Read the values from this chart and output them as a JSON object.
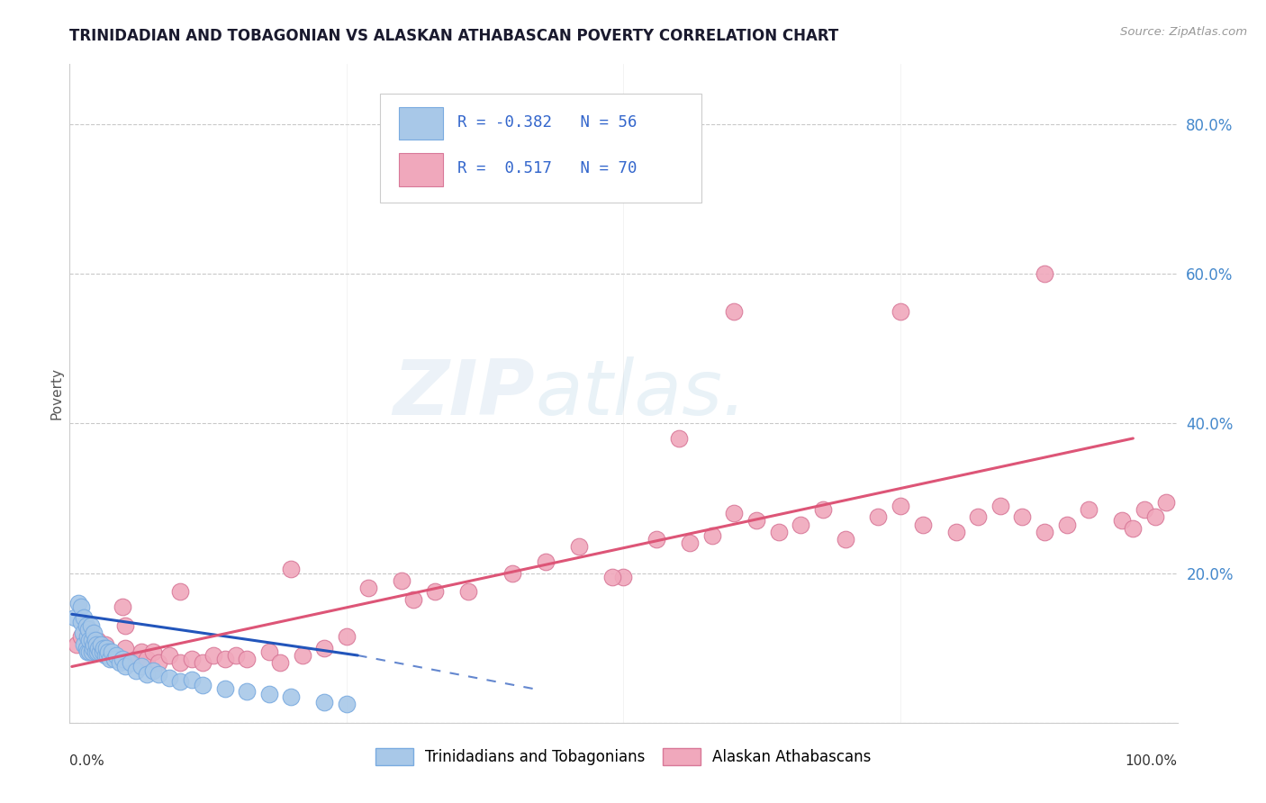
{
  "title": "TRINIDADIAN AND TOBAGONIAN VS ALASKAN ATHABASCAN POVERTY CORRELATION CHART",
  "source": "Source: ZipAtlas.com",
  "ylabel": "Poverty",
  "xlim": [
    0,
    1
  ],
  "ylim": [
    0,
    0.88
  ],
  "yticks": [
    0.0,
    0.2,
    0.4,
    0.6,
    0.8
  ],
  "ytick_labels": [
    "",
    "20.0%",
    "40.0%",
    "60.0%",
    "80.0%"
  ],
  "bg_color": "#ffffff",
  "grid_color": "#bbbbbb",
  "color_blue": "#a8c8e8",
  "color_blue_edge": "#7aabe0",
  "color_pink": "#f0a8bc",
  "color_pink_edge": "#d87898",
  "trendline_blue_color": "#2255bb",
  "trendline_pink_color": "#dd5577",
  "watermark_color": "#b8d8f0",
  "scatter_blue_x": [
    0.005,
    0.008,
    0.01,
    0.01,
    0.012,
    0.013,
    0.013,
    0.015,
    0.015,
    0.016,
    0.016,
    0.017,
    0.018,
    0.018,
    0.019,
    0.02,
    0.02,
    0.021,
    0.022,
    0.022,
    0.023,
    0.023,
    0.024,
    0.025,
    0.026,
    0.027,
    0.028,
    0.03,
    0.031,
    0.032,
    0.033,
    0.034,
    0.035,
    0.036,
    0.038,
    0.04,
    0.042,
    0.045,
    0.048,
    0.05,
    0.055,
    0.06,
    0.065,
    0.07,
    0.075,
    0.08,
    0.09,
    0.1,
    0.11,
    0.12,
    0.14,
    0.16,
    0.18,
    0.2,
    0.23,
    0.25
  ],
  "scatter_blue_y": [
    0.14,
    0.16,
    0.135,
    0.155,
    0.12,
    0.105,
    0.14,
    0.1,
    0.13,
    0.095,
    0.115,
    0.125,
    0.095,
    0.11,
    0.13,
    0.095,
    0.11,
    0.1,
    0.105,
    0.12,
    0.095,
    0.11,
    0.105,
    0.095,
    0.1,
    0.095,
    0.105,
    0.095,
    0.1,
    0.09,
    0.1,
    0.09,
    0.095,
    0.085,
    0.095,
    0.085,
    0.09,
    0.08,
    0.085,
    0.075,
    0.08,
    0.07,
    0.075,
    0.065,
    0.07,
    0.065,
    0.06,
    0.055,
    0.058,
    0.05,
    0.045,
    0.042,
    0.038,
    0.035,
    0.028,
    0.025
  ],
  "scatter_pink_x": [
    0.006,
    0.01,
    0.015,
    0.018,
    0.022,
    0.025,
    0.028,
    0.032,
    0.04,
    0.05,
    0.06,
    0.065,
    0.07,
    0.075,
    0.08,
    0.09,
    0.1,
    0.11,
    0.12,
    0.13,
    0.14,
    0.15,
    0.16,
    0.18,
    0.19,
    0.21,
    0.23,
    0.25,
    0.27,
    0.3,
    0.31,
    0.33,
    0.36,
    0.4,
    0.43,
    0.46,
    0.5,
    0.53,
    0.56,
    0.58,
    0.6,
    0.62,
    0.64,
    0.66,
    0.68,
    0.7,
    0.73,
    0.75,
    0.77,
    0.8,
    0.82,
    0.84,
    0.86,
    0.88,
    0.9,
    0.92,
    0.95,
    0.96,
    0.97,
    0.98,
    0.99,
    0.05,
    0.048,
    0.1,
    0.2,
    0.49,
    0.55,
    0.6,
    0.75,
    0.88
  ],
  "scatter_pink_y": [
    0.105,
    0.115,
    0.1,
    0.115,
    0.095,
    0.11,
    0.095,
    0.105,
    0.09,
    0.1,
    0.085,
    0.095,
    0.085,
    0.095,
    0.08,
    0.09,
    0.08,
    0.085,
    0.08,
    0.09,
    0.085,
    0.09,
    0.085,
    0.095,
    0.08,
    0.09,
    0.1,
    0.115,
    0.18,
    0.19,
    0.165,
    0.175,
    0.175,
    0.2,
    0.215,
    0.235,
    0.195,
    0.245,
    0.24,
    0.25,
    0.28,
    0.27,
    0.255,
    0.265,
    0.285,
    0.245,
    0.275,
    0.29,
    0.265,
    0.255,
    0.275,
    0.29,
    0.275,
    0.255,
    0.265,
    0.285,
    0.27,
    0.26,
    0.285,
    0.275,
    0.295,
    0.13,
    0.155,
    0.175,
    0.205,
    0.195,
    0.38,
    0.55,
    0.55,
    0.6
  ],
  "trendline_blue_x0": 0.002,
  "trendline_blue_x1": 0.26,
  "trendline_blue_y0": 0.145,
  "trendline_blue_y1": 0.09,
  "trendline_blue_dash_x1": 0.42,
  "trendline_blue_dash_y1": 0.045,
  "trendline_pink_x0": 0.002,
  "trendline_pink_x1": 0.96,
  "trendline_pink_y0": 0.075,
  "trendline_pink_y1": 0.38,
  "legend_blue_label": "Trinidadians and Tobagonians",
  "legend_pink_label": "Alaskan Athabascans"
}
